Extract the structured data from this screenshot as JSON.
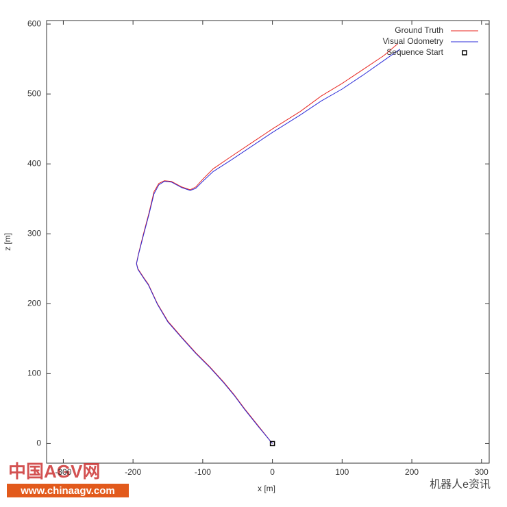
{
  "chart_data": {
    "type": "line",
    "xlabel": "x [m]",
    "ylabel": "z [m]",
    "xlim": [
      -324,
      311
    ],
    "ylim": [
      -28,
      605
    ],
    "xticks": [
      -300,
      -200,
      -100,
      0,
      100,
      200,
      300
    ],
    "yticks": [
      0,
      100,
      200,
      300,
      400,
      500,
      600
    ],
    "legend": "top-right",
    "series": [
      {
        "name": "Ground Truth",
        "color": "#e8251f",
        "x": [
          0,
          -20,
          -40,
          -55,
          -70,
          -90,
          -110,
          -130,
          -150,
          -165,
          -178,
          -183,
          -193,
          -195,
          -192,
          -185,
          -177,
          -170,
          -163,
          -155,
          -145,
          -130,
          -118,
          -110,
          -100,
          -85,
          -60,
          -30,
          0,
          40,
          70,
          100,
          130,
          160,
          180
        ],
        "values": [
          0,
          25,
          50,
          70,
          88,
          110,
          130,
          152,
          175,
          200,
          228,
          235,
          250,
          258,
          272,
          300,
          330,
          360,
          372,
          376,
          375,
          367,
          363,
          367,
          378,
          393,
          410,
          430,
          450,
          475,
          497,
          515,
          535,
          555,
          572
        ]
      },
      {
        "name": "Visual Odometry",
        "color": "#2b2bd8",
        "x": [
          0,
          -20,
          -40,
          -55,
          -70,
          -90,
          -110,
          -130,
          -150,
          -165,
          -178,
          -183,
          -193,
          -195,
          -192,
          -185,
          -177,
          -170,
          -163,
          -155,
          -145,
          -130,
          -118,
          -110,
          -100,
          -85,
          -60,
          -30,
          0,
          40,
          70,
          100,
          130,
          160,
          183
        ],
        "values": [
          0,
          24,
          49,
          69,
          87,
          109,
          129,
          151,
          174,
          199,
          227,
          234,
          249,
          257,
          271,
          298,
          328,
          357,
          370,
          375,
          374,
          366,
          362,
          365,
          375,
          389,
          405,
          425,
          445,
          470,
          490,
          507,
          527,
          548,
          564
        ]
      }
    ],
    "points": {
      "name": "Sequence Start",
      "color": "#000000",
      "x": [
        0
      ],
      "values": [
        0
      ]
    },
    "watermarks": [
      "中国AGV网",
      "www.chinaagv.com",
      "机器人e资讯"
    ]
  }
}
